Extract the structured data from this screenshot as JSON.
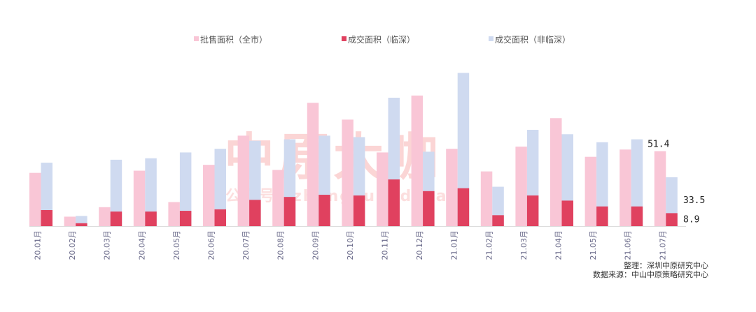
{
  "chart_data": {
    "type": "bar",
    "categories": [
      "20.01月",
      "20.02月",
      "20.03月",
      "20.04月",
      "20.05月",
      "20.06月",
      "20.07月",
      "20.08月",
      "20.09月",
      "20.10月",
      "20.11月",
      "20.12月",
      "21.01月",
      "21.02月",
      "21.03月",
      "21.04月",
      "21.05月",
      "21.06月",
      "21.07月"
    ],
    "series": [
      {
        "name": "批售面积（全市）",
        "color": "#f9c6d6",
        "values": [
          36.5,
          6.5,
          13,
          38,
          16.5,
          42,
          62,
          38.5,
          84.5,
          73,
          50.5,
          89.5,
          53,
          37.5,
          54.5,
          74,
          47.5,
          52.5,
          51.4
        ]
      },
      {
        "name": "成交面积（临深）",
        "color": "#e0415f",
        "values": [
          11,
          2,
          10,
          10,
          10.5,
          11.5,
          18,
          20,
          21.5,
          21,
          32,
          24,
          26,
          7.5,
          21,
          17.5,
          13.5,
          13.5,
          8.9
        ]
      },
      {
        "name": "成交面积（非临深）",
        "color": "#cfdaf0",
        "values": [
          43.5,
          7,
          45.5,
          46.5,
          50.5,
          53,
          58.5,
          59.5,
          62,
          61,
          88,
          51,
          105,
          27,
          66,
          63,
          57.5,
          59.5,
          33.5
        ]
      }
    ],
    "data_labels": [
      "51.4",
      "33.5",
      "8.9"
    ],
    "ylim": [
      0,
      110
    ],
    "grid": false,
    "legend_position": "top"
  },
  "watermark": {
    "main": "中原大咖",
    "sub": "公众号：zhongyuandaka"
  },
  "source": {
    "line1": "整理：深圳中原研究中心",
    "line2": "数据来源：中山中原策略研究中心"
  }
}
